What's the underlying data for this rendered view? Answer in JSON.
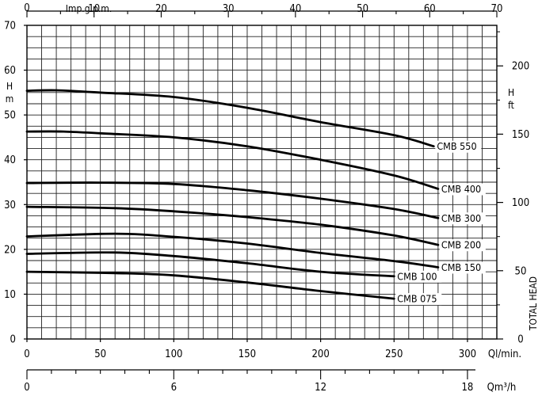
{
  "chart_data": {
    "type": "line",
    "title": "",
    "x_axes": {
      "flow_lmin": {
        "label": "Ql/min.",
        "ticks": [
          "0",
          "50",
          "100",
          "150",
          "200",
          "250",
          "300"
        ],
        "range": [
          0,
          320
        ]
      },
      "flow_m3h": {
        "label": "Qm³/h",
        "ticks": [
          "0",
          "6",
          "12",
          "18"
        ],
        "range": [
          0,
          19.2
        ]
      },
      "flow_impgpm": {
        "label": "Imp.g.p.m.",
        "ticks": [
          "0",
          "10",
          "20",
          "30",
          "40",
          "50",
          "60",
          "70"
        ],
        "range": [
          0,
          70
        ]
      }
    },
    "y_axes": {
      "head_m": {
        "label_h": "H",
        "label_unit": "m",
        "ticks": [
          "0",
          "10",
          "20",
          "30",
          "40",
          "50",
          "60",
          "70"
        ],
        "range": [
          0,
          70
        ]
      },
      "head_ft": {
        "label_h": "H",
        "label_unit": "ft",
        "side_label": "TOTAL HEAD",
        "ticks": [
          "0",
          "50",
          "100",
          "150",
          "200"
        ],
        "range": [
          0,
          229.7
        ]
      }
    },
    "grid": true,
    "series": [
      {
        "name": "CMB 550",
        "x": [
          0,
          20,
          50,
          100,
          150,
          200,
          250,
          277
        ],
        "y": [
          55.4,
          55.5,
          55.0,
          54.0,
          51.6,
          48.4,
          45.5,
          43.0
        ]
      },
      {
        "name": "CMB 400",
        "x": [
          0,
          25,
          50,
          100,
          150,
          200,
          250,
          280
        ],
        "y": [
          46.3,
          46.3,
          45.9,
          45.0,
          43.0,
          40.0,
          36.5,
          33.5
        ]
      },
      {
        "name": "CMB 300",
        "x": [
          0,
          50,
          100,
          150,
          200,
          250,
          280
        ],
        "y": [
          34.8,
          34.9,
          34.6,
          33.2,
          31.3,
          29.0,
          27.0
        ]
      },
      {
        "name": "CMB 200",
        "x": [
          0,
          60,
          100,
          150,
          200,
          250,
          280
        ],
        "y": [
          29.5,
          29.2,
          28.5,
          27.2,
          25.5,
          23.1,
          21.0
        ]
      },
      {
        "name": "CMB 150",
        "x": [
          0,
          60,
          100,
          150,
          200,
          250,
          280
        ],
        "y": [
          22.9,
          23.5,
          22.8,
          21.3,
          19.2,
          17.4,
          16.0
        ]
      },
      {
        "name": "CMB 100",
        "x": [
          0,
          60,
          100,
          150,
          200,
          250
        ],
        "y": [
          19.0,
          19.3,
          18.5,
          16.9,
          15.0,
          14.0
        ]
      },
      {
        "name": "CMB 075",
        "x": [
          0,
          60,
          100,
          150,
          200,
          250
        ],
        "y": [
          15.0,
          14.7,
          14.2,
          12.6,
          10.7,
          9.0
        ]
      }
    ]
  }
}
